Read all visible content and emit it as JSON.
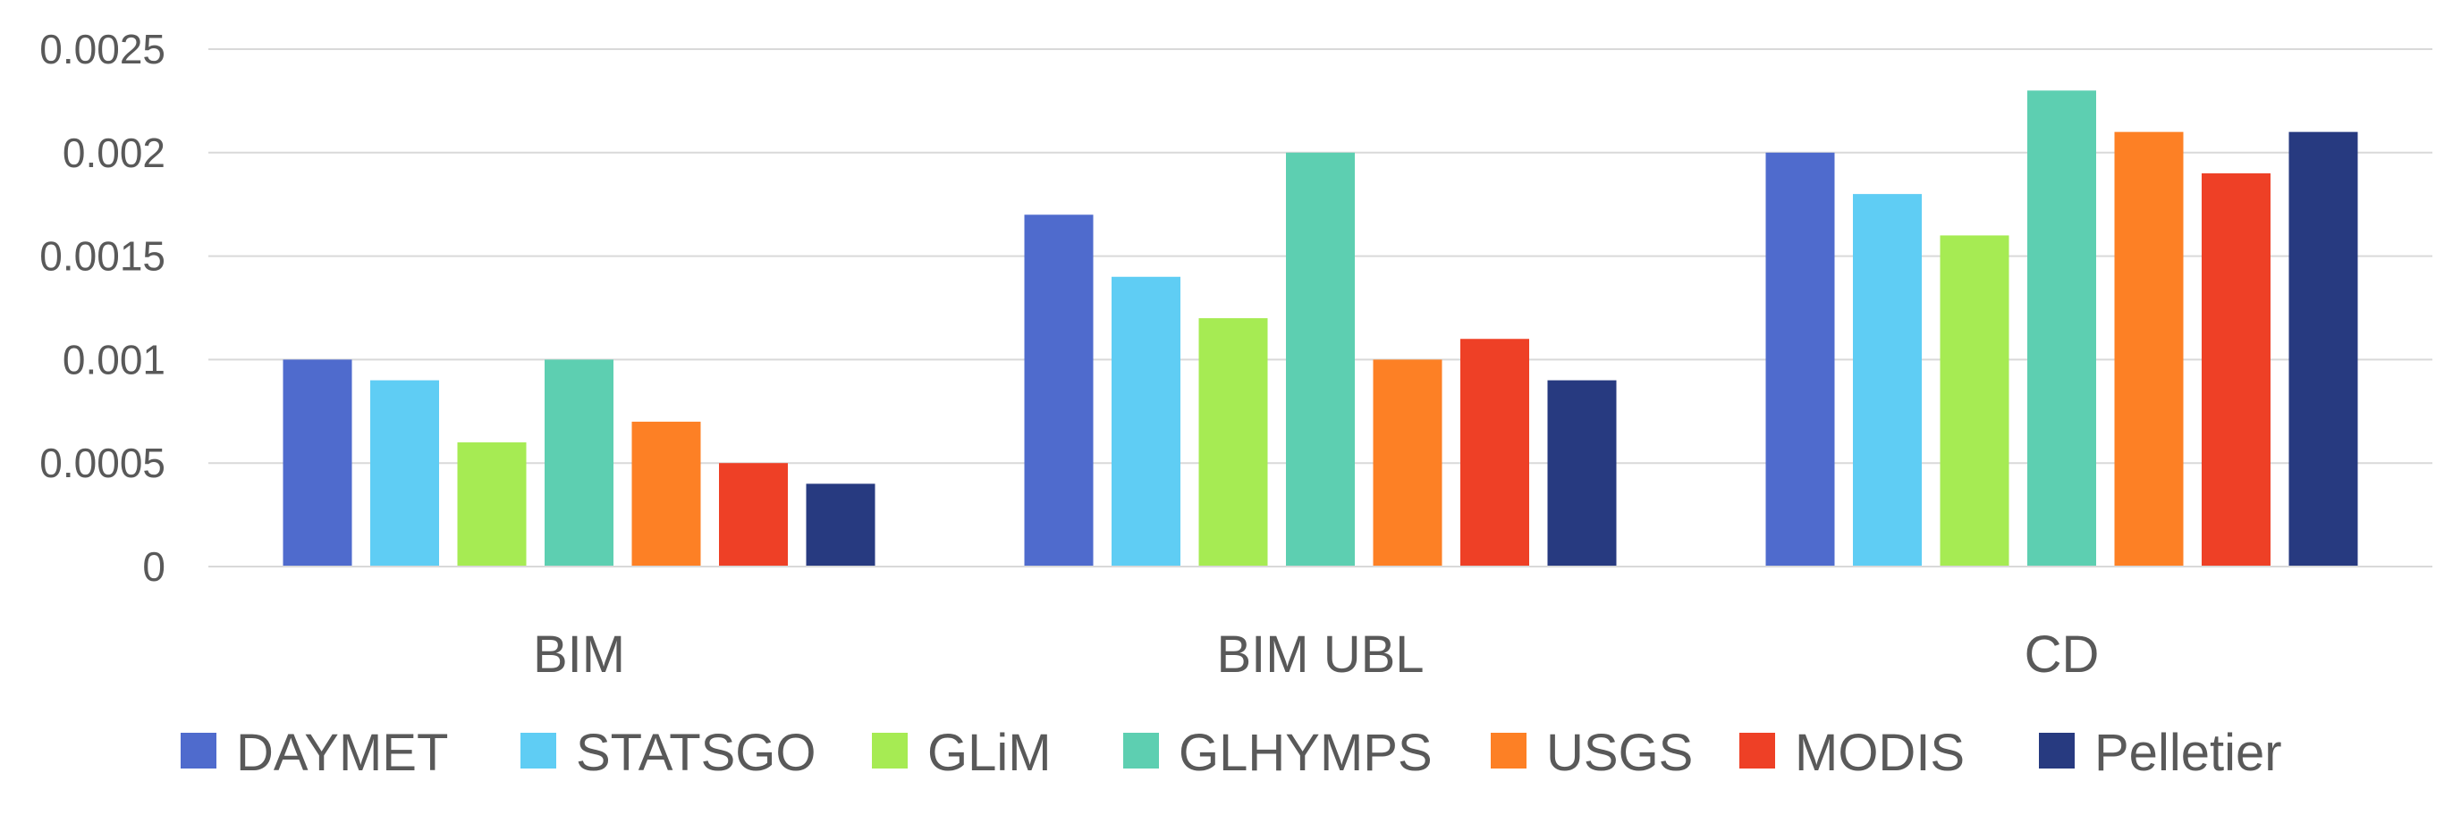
{
  "chart_data": {
    "type": "bar",
    "title": "",
    "xlabel": "",
    "ylabel": "",
    "categories": [
      "BIM",
      "BIM UBL",
      "CD"
    ],
    "ylim": [
      0,
      0.0025
    ],
    "yticks": [
      "0",
      "0.0005",
      "0.001",
      "0.0015",
      "0.002",
      "0.0025"
    ],
    "yticks_values": [
      0,
      0.0005,
      0.001,
      0.0015,
      0.002,
      0.0025
    ],
    "grid": true,
    "legend_position": "bottom",
    "series": [
      {
        "name": "DAYMET",
        "color": "#4f6bcd",
        "values": [
          0.001,
          0.0017,
          0.002
        ]
      },
      {
        "name": "STATSGO",
        "color": "#5fcdf4",
        "values": [
          0.0009,
          0.0014,
          0.0018
        ]
      },
      {
        "name": "GLiM",
        "color": "#a6eb53",
        "values": [
          0.0006,
          0.0012,
          0.0016
        ]
      },
      {
        "name": "GLHYMPS",
        "color": "#5dcfb1",
        "values": [
          0.001,
          0.002,
          0.0023
        ]
      },
      {
        "name": "USGS",
        "color": "#fd8025",
        "values": [
          0.0007,
          0.001,
          0.0021
        ]
      },
      {
        "name": "MODIS",
        "color": "#ee4026",
        "values": [
          0.0005,
          0.0011,
          0.0019
        ]
      },
      {
        "name": "Pelletier",
        "color": "#273a80",
        "values": [
          0.0004,
          0.0009,
          0.0021
        ]
      }
    ]
  }
}
